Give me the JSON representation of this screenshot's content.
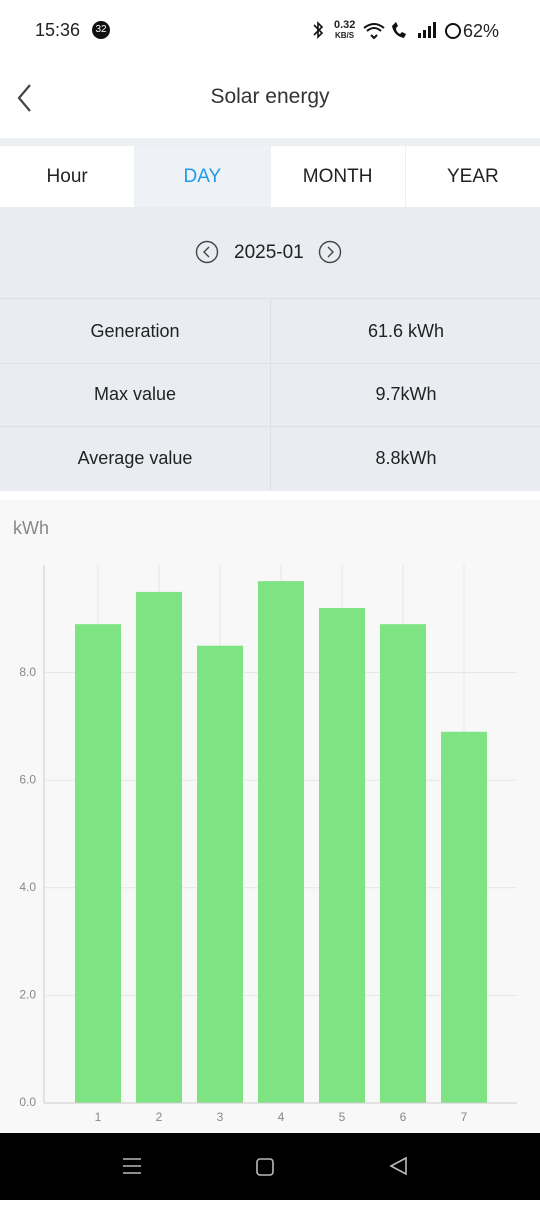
{
  "status_bar": {
    "time": "15:36",
    "badge": "32",
    "speed": "0.32",
    "speed_unit": "KB/S",
    "battery": "62%"
  },
  "header": {
    "title": "Solar energy"
  },
  "tabs": [
    "Hour",
    "DAY",
    "MONTH",
    "YEAR"
  ],
  "date": "2025-01",
  "stats": [
    {
      "label": "Generation",
      "value": "61.6 kWh"
    },
    {
      "label": "Max value",
      "value": "9.7kWh"
    },
    {
      "label": "Average value",
      "value": "8.8kWh"
    }
  ],
  "chart_data": {
    "type": "bar",
    "y_label": "kWh",
    "categories": [
      "1",
      "2",
      "3",
      "4",
      "5",
      "6",
      "7"
    ],
    "values": [
      8.9,
      9.5,
      8.5,
      9.7,
      9.2,
      8.9,
      6.9
    ],
    "color": "#7de383",
    "ylim": [
      0,
      10
    ],
    "yticks": [
      {
        "value": 0,
        "label": "0.0"
      },
      {
        "value": 2,
        "label": "2.0"
      },
      {
        "value": 4,
        "label": "4.0"
      },
      {
        "value": 6,
        "label": "6.0"
      },
      {
        "value": 8,
        "label": "8.0"
      }
    ],
    "grid": true
  }
}
